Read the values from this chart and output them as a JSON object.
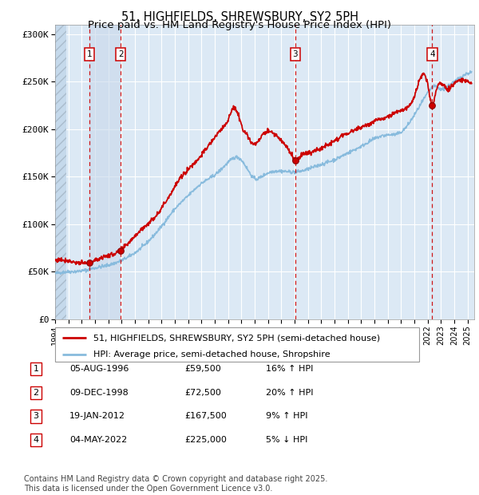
{
  "title_line1": "51, HIGHFIELDS, SHREWSBURY, SY2 5PH",
  "title_line2": "Price paid vs. HM Land Registry's House Price Index (HPI)",
  "xlim_start": 1994.0,
  "xlim_end": 2025.5,
  "ylim": [
    0,
    310000
  ],
  "yticks": [
    0,
    50000,
    100000,
    150000,
    200000,
    250000,
    300000
  ],
  "ytick_labels": [
    "£0",
    "£50K",
    "£100K",
    "£150K",
    "£200K",
    "£250K",
    "£300K"
  ],
  "plot_bg_color": "#dce9f5",
  "grid_color": "#ffffff",
  "sale_line_color": "#cc0000",
  "hpi_line_color": "#88bbdd",
  "dashed_line_color": "#cc0000",
  "sales": [
    {
      "date_decimal": 1996.59,
      "price": 59500,
      "label": "1"
    },
    {
      "date_decimal": 1998.93,
      "price": 72500,
      "label": "2"
    },
    {
      "date_decimal": 2012.05,
      "price": 167500,
      "label": "3"
    },
    {
      "date_decimal": 2022.34,
      "price": 225000,
      "label": "4"
    }
  ],
  "table_rows": [
    {
      "num": "1",
      "date": "05-AUG-1996",
      "price": "£59,500",
      "hpi": "16% ↑ HPI"
    },
    {
      "num": "2",
      "date": "09-DEC-1998",
      "price": "£72,500",
      "hpi": "20% ↑ HPI"
    },
    {
      "num": "3",
      "date": "19-JAN-2012",
      "price": "£167,500",
      "hpi": "9% ↑ HPI"
    },
    {
      "num": "4",
      "date": "04-MAY-2022",
      "price": "£225,000",
      "hpi": "5% ↓ HPI"
    }
  ],
  "legend_entries": [
    {
      "label": "51, HIGHFIELDS, SHREWSBURY, SY2 5PH (semi-detached house)",
      "color": "#cc0000"
    },
    {
      "label": "HPI: Average price, semi-detached house, Shropshire",
      "color": "#88bbdd"
    }
  ],
  "footer": "Contains HM Land Registry data © Crown copyright and database right 2025.\nThis data is licensed under the Open Government Licence v3.0.",
  "title_fontsize": 10.5,
  "subtitle_fontsize": 9.5,
  "tick_fontsize": 8,
  "legend_fontsize": 8,
  "table_fontsize": 8,
  "footer_fontsize": 7
}
